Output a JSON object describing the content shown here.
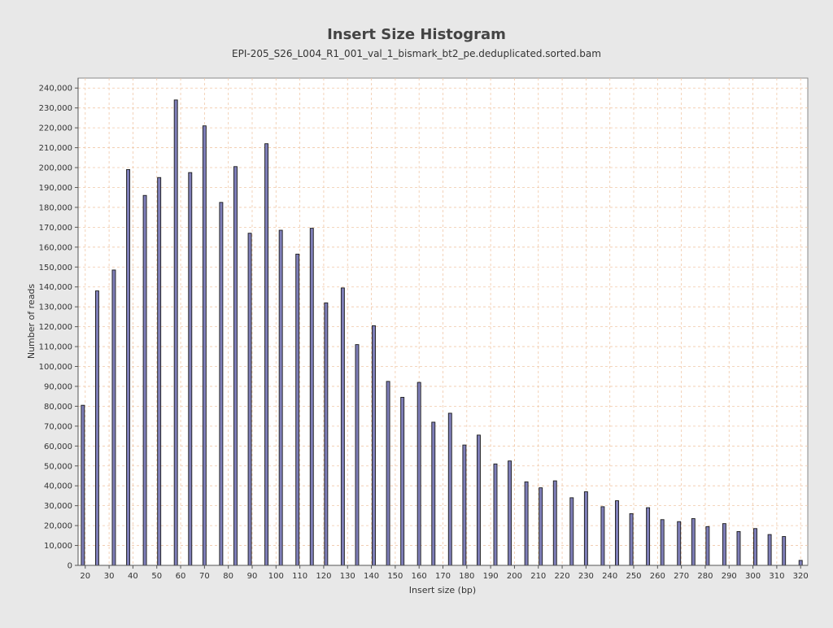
{
  "chart_data": {
    "type": "bar",
    "title": "Insert Size Histogram",
    "subtitle": "EPI-205_S26_L004_R1_001_val_1_bismark_bt2_pe.deduplicated.sorted.bam",
    "xlabel": "Insert size (bp)",
    "ylabel": "Number of reads",
    "xlim": [
      17,
      323
    ],
    "ylim": [
      0,
      245000
    ],
    "grid": true,
    "legend": "none",
    "bar_color": "#7e7eb8",
    "x_ticks": [
      20,
      30,
      40,
      50,
      60,
      70,
      80,
      90,
      100,
      110,
      120,
      130,
      140,
      150,
      160,
      170,
      180,
      190,
      200,
      210,
      220,
      230,
      240,
      250,
      260,
      270,
      280,
      290,
      300,
      310,
      320
    ],
    "x_tick_labels": [
      "20",
      "30",
      "40",
      "50",
      "60",
      "70",
      "80",
      "90",
      "100",
      "110",
      "120",
      "130",
      "140",
      "150",
      "160",
      "170",
      "180",
      "190",
      "200",
      "210",
      "220",
      "230",
      "240",
      "250",
      "260",
      "270",
      "280",
      "290",
      "300",
      "310",
      "320"
    ],
    "y_ticks": [
      0,
      10000,
      20000,
      30000,
      40000,
      50000,
      60000,
      70000,
      80000,
      90000,
      100000,
      110000,
      120000,
      130000,
      140000,
      150000,
      160000,
      170000,
      180000,
      190000,
      200000,
      210000,
      220000,
      230000,
      240000
    ],
    "y_tick_labels": [
      "0",
      "10,000",
      "20,000",
      "30,000",
      "40,000",
      "50,000",
      "60,000",
      "70,000",
      "80,000",
      "90,000",
      "100,000",
      "110,000",
      "120,000",
      "130,000",
      "140,000",
      "150,000",
      "160,000",
      "170,000",
      "180,000",
      "190,000",
      "200,000",
      "210,000",
      "220,000",
      "230,000",
      "240,000"
    ],
    "x": [
      19,
      25,
      32,
      38,
      45,
      51,
      58,
      64,
      70,
      77,
      83,
      89,
      96,
      102,
      109,
      115,
      121,
      128,
      134,
      141,
      147,
      153,
      160,
      166,
      173,
      179,
      185,
      192,
      198,
      205,
      211,
      217,
      224,
      230,
      237,
      243,
      249,
      256,
      262,
      269,
      275,
      281,
      288,
      294,
      301,
      307,
      313,
      320
    ],
    "values": [
      80500,
      138000,
      148500,
      199000,
      186000,
      195000,
      234000,
      197500,
      221000,
      182500,
      200500,
      167000,
      212000,
      168500,
      156500,
      169500,
      132000,
      139500,
      111000,
      120500,
      92500,
      84500,
      92000,
      72000,
      76500,
      60500,
      65500,
      51000,
      52500,
      42000,
      39000,
      42500,
      34000,
      37000,
      29500,
      32500,
      26000,
      29000,
      23000,
      22000,
      23500,
      19500,
      21000,
      17000,
      18500,
      15500,
      14500,
      2500
    ]
  }
}
